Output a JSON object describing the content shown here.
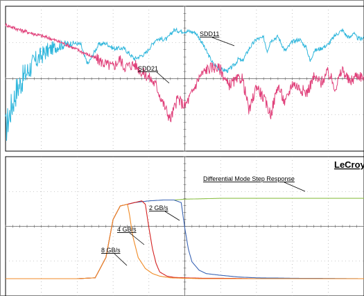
{
  "brand": "LeCroy",
  "chart_data": [
    {
      "type": "line",
      "grid": true,
      "series": [
        {
          "name": "SDD11",
          "color": "#2eb6dc",
          "x": [
            0,
            0.015,
            0.03,
            0.05,
            0.07,
            0.09,
            0.11,
            0.13,
            0.15,
            0.17,
            0.19,
            0.21,
            0.22,
            0.23,
            0.245,
            0.26,
            0.28,
            0.3,
            0.33,
            0.36,
            0.39,
            0.42,
            0.45,
            0.47,
            0.49,
            0.51,
            0.53,
            0.545,
            0.56,
            0.58,
            0.6,
            0.62,
            0.64,
            0.65,
            0.66,
            0.68,
            0.7,
            0.72,
            0.73,
            0.74,
            0.76,
            0.78,
            0.8,
            0.82,
            0.84,
            0.85,
            0.86,
            0.88,
            0.9,
            0.92,
            0.94,
            0.95,
            0.96,
            0.97,
            0.98,
            0.99,
            1.0
          ],
          "y": [
            -32,
            -24,
            -17,
            -12,
            -8,
            -5,
            -2.5,
            -1,
            0,
            0.6,
            1,
            0.5,
            -4,
            -7,
            -3,
            0.5,
            1,
            -1,
            -1,
            -5,
            -3,
            2.5,
            2.5,
            6,
            5.5,
            5.5,
            5,
            2,
            -2,
            -7,
            -9,
            -9.5,
            -7,
            -5,
            -6,
            -1,
            2.5,
            3,
            -2,
            2,
            3.5,
            -2,
            1.5,
            2.5,
            -1,
            -6,
            -2,
            -1,
            0.5,
            4,
            6,
            4,
            3,
            5,
            3,
            2.5,
            3.5
          ]
        },
        {
          "name": "SDD21",
          "color": "#e0407a",
          "x": [
            0,
            0.04,
            0.08,
            0.12,
            0.16,
            0.2,
            0.24,
            0.28,
            0.3,
            0.32,
            0.33,
            0.36,
            0.38,
            0.4,
            0.42,
            0.44,
            0.46,
            0.48,
            0.5,
            0.52,
            0.54,
            0.56,
            0.58,
            0.6,
            0.62,
            0.66,
            0.68,
            0.7,
            0.72,
            0.74,
            0.76,
            0.78,
            0.8,
            0.84,
            0.86,
            0.88,
            0.9,
            0.92,
            0.94,
            0.96,
            0.98,
            1.0
          ],
          "y": [
            8,
            6,
            4.5,
            3,
            1,
            -1.5,
            -4,
            -7,
            -8,
            -5,
            -8,
            -7,
            -10,
            -12,
            -15,
            -22,
            -28,
            -20,
            -23,
            -18,
            -12,
            -9,
            -8,
            -9,
            -15,
            -12,
            -25,
            -15,
            -20,
            -26,
            -15,
            -22,
            -14,
            -18,
            -12,
            -14,
            -10,
            -16,
            -9,
            -14,
            -11,
            -12
          ]
        }
      ]
    },
    {
      "type": "line",
      "title": "Differential Mode Step Response",
      "grid": true,
      "series": [
        {
          "name": "8 GB/s",
          "color": "#f08a24",
          "x": [
            0,
            0.2,
            0.25,
            0.28,
            0.3,
            0.32,
            0.34,
            0.345,
            0.355,
            0.37,
            0.39,
            0.41,
            0.43,
            0.46,
            0.5,
            0.55,
            1.0
          ],
          "y": [
            0,
            0,
            0.01,
            0.25,
            0.7,
            0.86,
            0.88,
            0.78,
            0.5,
            0.25,
            0.12,
            0.06,
            0.03,
            0.01,
            0.005,
            0,
            0
          ]
        },
        {
          "name": "4 GB/s",
          "color": "#d42020",
          "x": [
            0,
            0.2,
            0.25,
            0.28,
            0.3,
            0.32,
            0.34,
            0.36,
            0.38,
            0.39,
            0.4,
            0.41,
            0.42,
            0.43,
            0.45,
            0.47,
            0.5,
            0.55,
            0.6,
            0.7,
            1.0
          ],
          "y": [
            0,
            0,
            0.01,
            0.25,
            0.7,
            0.86,
            0.88,
            0.9,
            0.92,
            0.88,
            0.6,
            0.35,
            0.18,
            0.08,
            0.03,
            0.015,
            0.01,
            0.005,
            0.005,
            0,
            0
          ]
        },
        {
          "name": "2 GB/s",
          "color": "#3a64b4",
          "x": [
            0,
            0.2,
            0.25,
            0.28,
            0.3,
            0.32,
            0.34,
            0.36,
            0.4,
            0.44,
            0.47,
            0.49,
            0.5,
            0.51,
            0.52,
            0.54,
            0.56,
            0.6,
            0.65,
            0.7,
            0.8,
            1.0
          ],
          "y": [
            0,
            0,
            0.01,
            0.25,
            0.7,
            0.86,
            0.88,
            0.9,
            0.92,
            0.93,
            0.93,
            0.9,
            0.6,
            0.35,
            0.2,
            0.1,
            0.06,
            0.04,
            0.02,
            0.01,
            0.005,
            0
          ]
        },
        {
          "name": "Differential Mode Step Response",
          "color": "#8ec04a",
          "x": [
            0.47,
            0.5,
            0.6,
            0.7,
            0.8,
            0.9,
            1.0
          ],
          "y": [
            0.93,
            0.94,
            0.95,
            0.95,
            0.95,
            0.95,
            0.95
          ]
        }
      ]
    }
  ]
}
